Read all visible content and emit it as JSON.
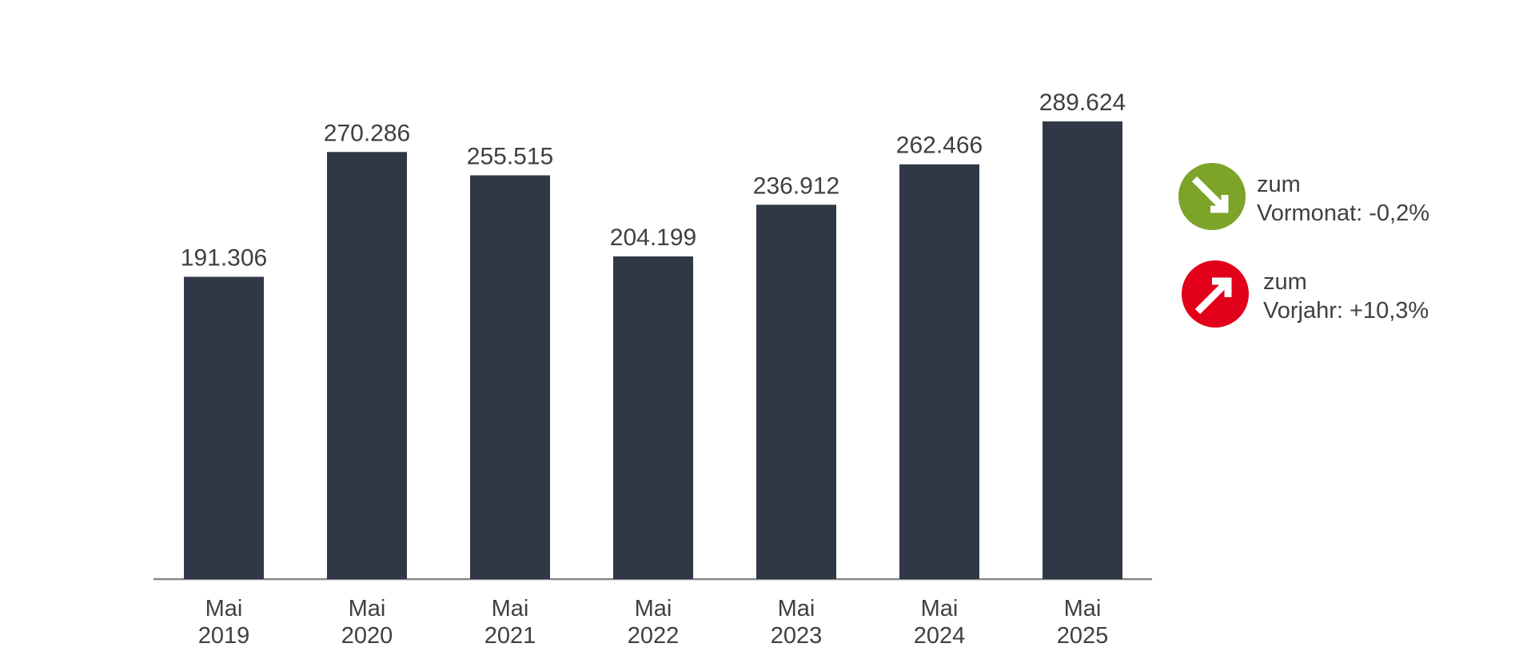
{
  "chart_data": {
    "type": "bar",
    "categories": [
      "Mai 2019",
      "Mai 2020",
      "Mai 2021",
      "Mai 2022",
      "Mai 2023",
      "Mai 2024",
      "Mai 2025"
    ],
    "values": [
      191306,
      270286,
      255515,
      204199,
      236912,
      262466,
      289624
    ],
    "value_labels": [
      "191.306",
      "270.286",
      "255.515",
      "204.199",
      "236.912",
      "262.466",
      "289.624"
    ],
    "color": "#303848",
    "annotations": [
      {
        "lines": [
          "zum",
          "Vormonat: -0,2%"
        ],
        "color": "#7ba428"
      },
      {
        "lines": [
          "zum",
          "Vorjahr: +10,3%"
        ],
        "color": "#e2001a"
      }
    ]
  }
}
